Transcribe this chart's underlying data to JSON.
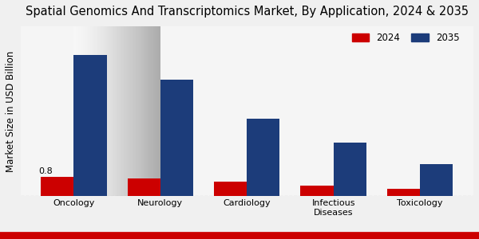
{
  "title": "Spatial Genomics And Transcriptomics Market, By Application, 2024 & 2035",
  "ylabel": "Market Size in USD Billion",
  "categories": [
    "Oncology",
    "Neurology",
    "Cardiology",
    "Infectious\nDiseases",
    "Toxicology"
  ],
  "values_2024": [
    0.8,
    0.72,
    0.58,
    0.42,
    0.3
  ],
  "values_2035": [
    5.8,
    4.8,
    3.2,
    2.2,
    1.3
  ],
  "color_2024": "#cc0000",
  "color_2035": "#1c3c7a",
  "legend_labels": [
    "2024",
    "2035"
  ],
  "annotation_text": "0.8",
  "annotation_bar": 0,
  "bar_width": 0.38,
  "ylim": [
    0,
    7.0
  ],
  "title_fontsize": 10.5,
  "axis_fontsize": 8.5,
  "tick_fontsize": 8,
  "bottom_bar_color": "#c00000",
  "bottom_bar_height": 8
}
